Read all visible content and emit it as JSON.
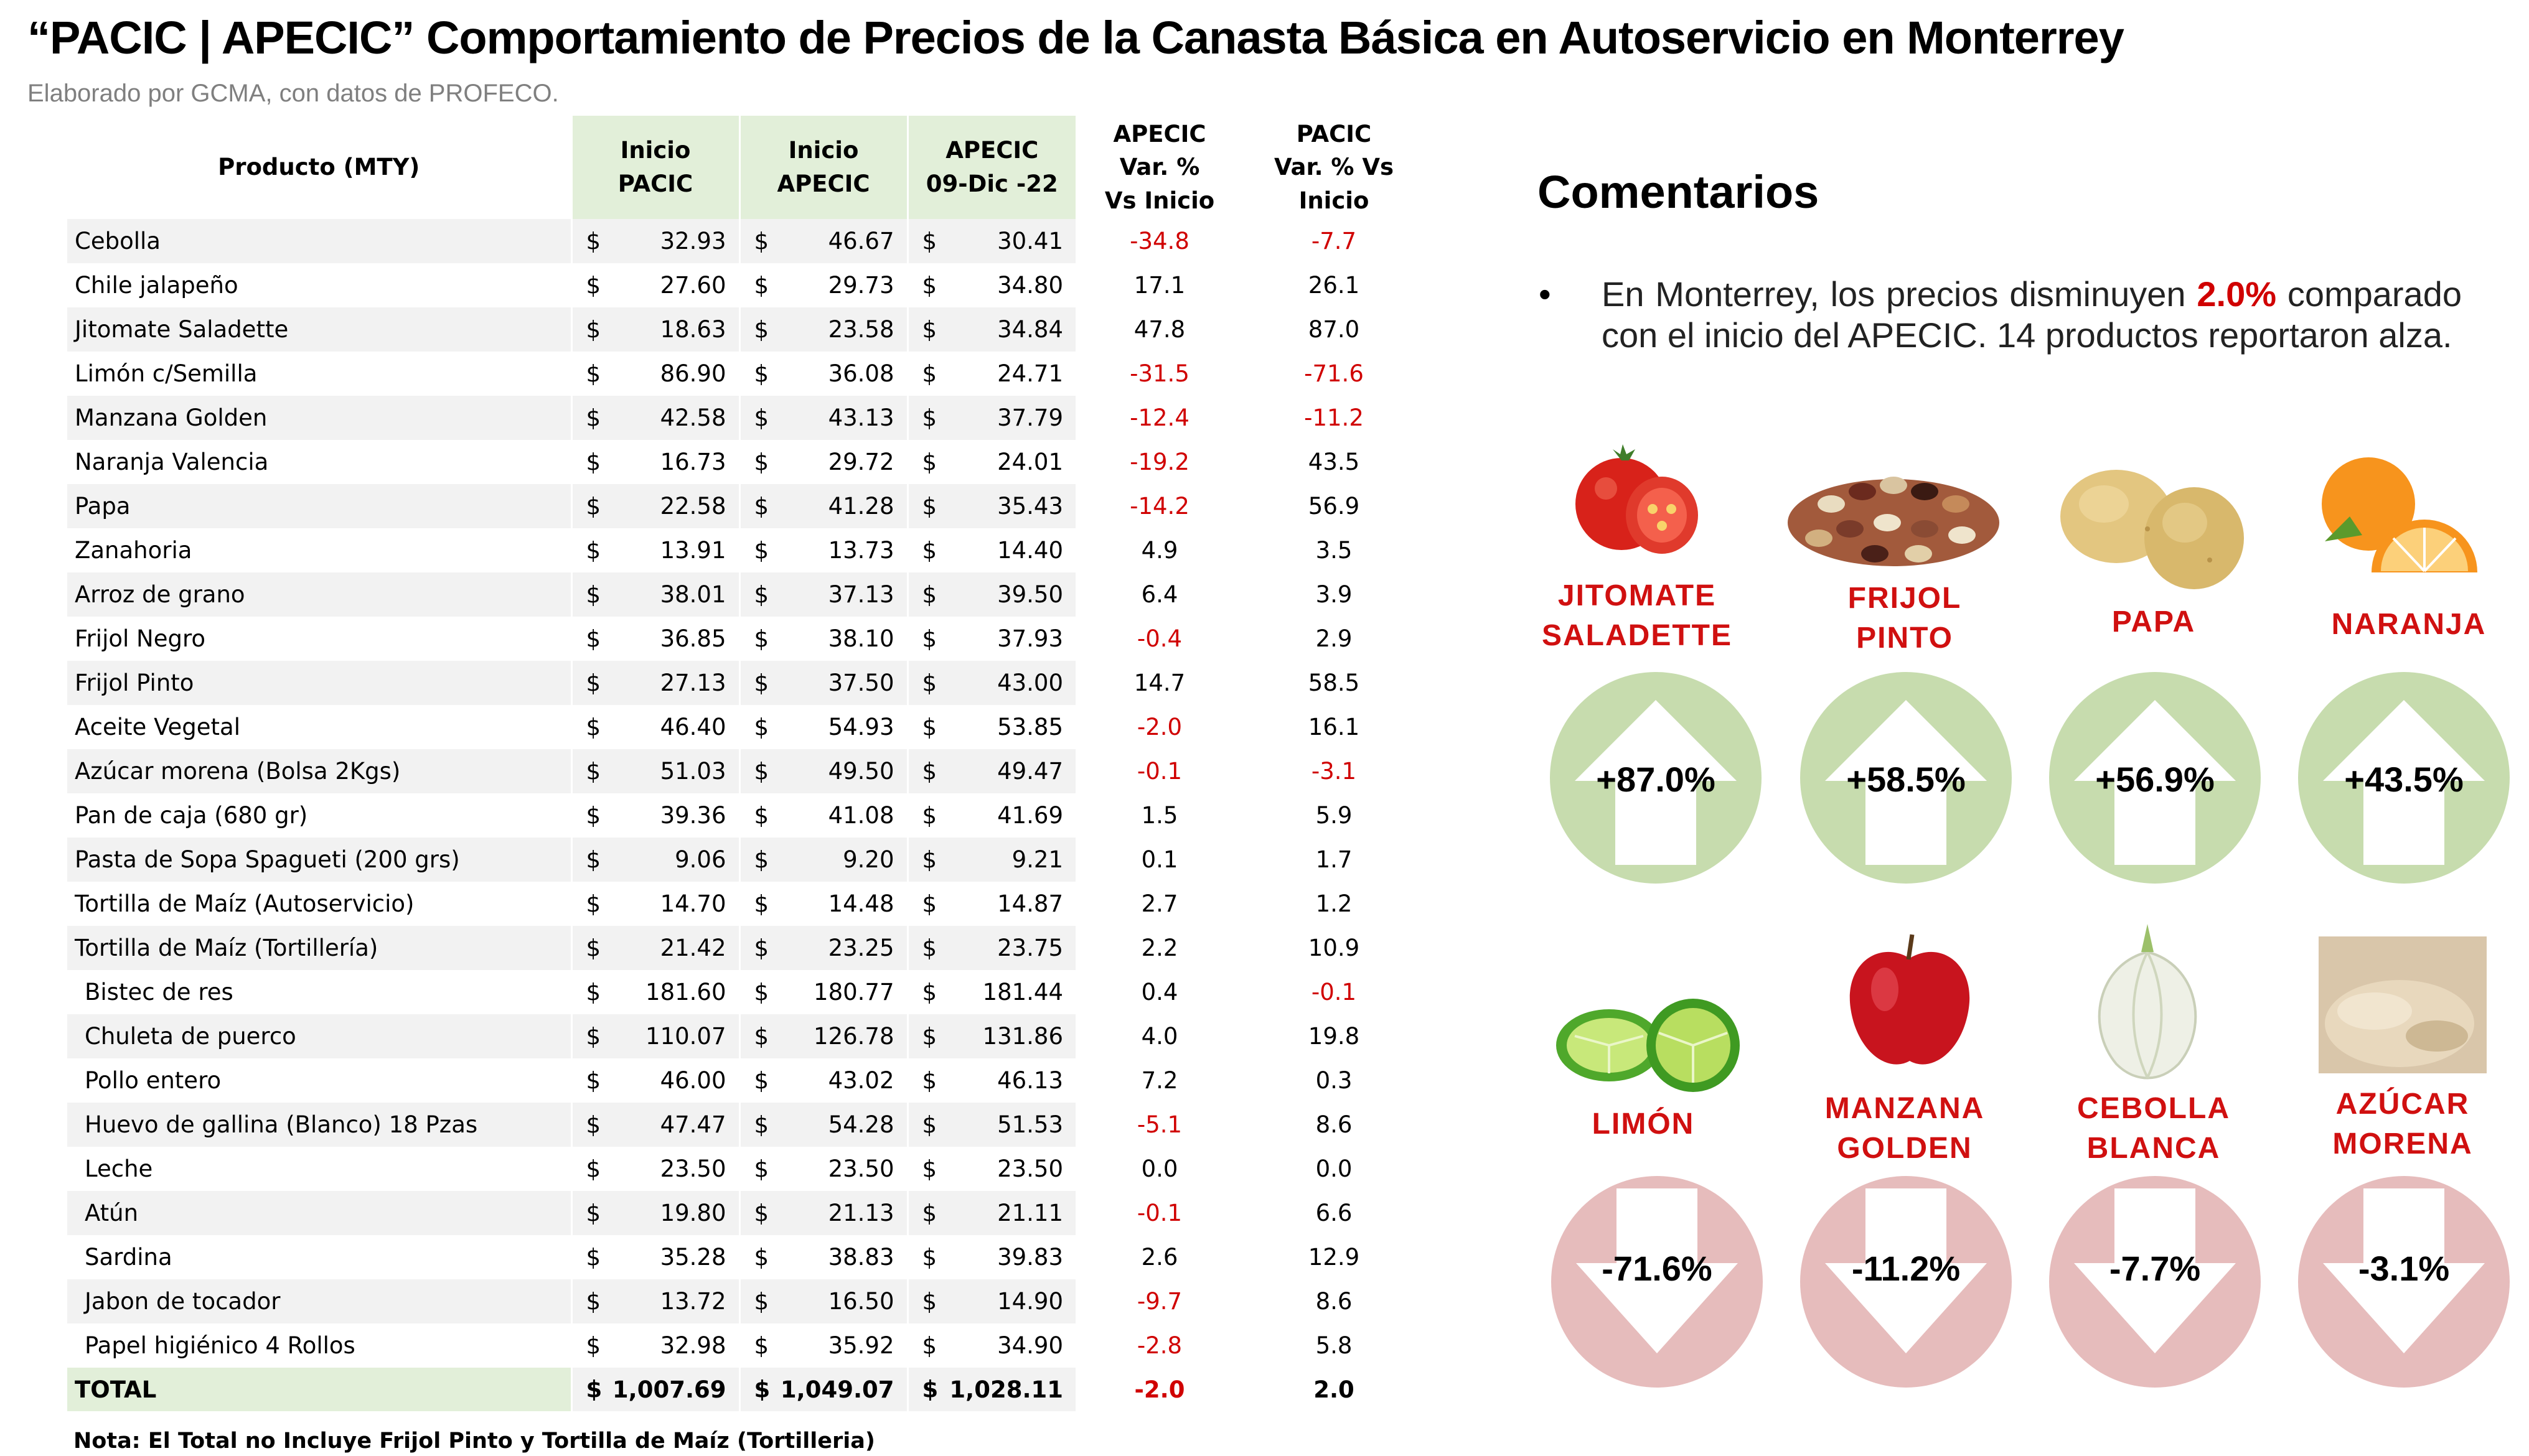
{
  "title": "“PACIC | APECIC” Comportamiento de Precios de la Canasta Básica en Autoservicio en Monterrey",
  "subtitle": "Elaborado por GCMA, con datos de PROFECO.",
  "table": {
    "headers": {
      "product": "Producto (MTY)",
      "pacic_l1": "Inicio",
      "pacic_l2": "PACIC",
      "apecic_l1": "Inicio",
      "apecic_l2": "APECIC",
      "date_l1": "APECIC",
      "date_l2": "09-Dic -22",
      "var_apecic_l1": "APECIC",
      "var_apecic_l2": "Var. %",
      "var_apecic_l3": "Vs  Inicio",
      "var_pacic_l1": "PACIC",
      "var_pacic_l2": "Var. % Vs",
      "var_pacic_l3": "Inicio"
    },
    "currency_symbol": "$",
    "rows": [
      {
        "product": "Cebolla",
        "indent": false,
        "pacic": "32.93",
        "apecic": "46.67",
        "current": "30.41",
        "var_apecic": "-34.8",
        "var_pacic": "-7.7"
      },
      {
        "product": "Chile jalapeño",
        "indent": false,
        "pacic": "27.60",
        "apecic": "29.73",
        "current": "34.80",
        "var_apecic": "17.1",
        "var_pacic": "26.1"
      },
      {
        "product": "Jitomate Saladette",
        "indent": false,
        "pacic": "18.63",
        "apecic": "23.58",
        "current": "34.84",
        "var_apecic": "47.8",
        "var_pacic": "87.0"
      },
      {
        "product": "Limón c/Semilla",
        "indent": false,
        "pacic": "86.90",
        "apecic": "36.08",
        "current": "24.71",
        "var_apecic": "-31.5",
        "var_pacic": "-71.6"
      },
      {
        "product": "Manzana Golden",
        "indent": false,
        "pacic": "42.58",
        "apecic": "43.13",
        "current": "37.79",
        "var_apecic": "-12.4",
        "var_pacic": "-11.2"
      },
      {
        "product": "Naranja Valencia",
        "indent": false,
        "pacic": "16.73",
        "apecic": "29.72",
        "current": "24.01",
        "var_apecic": "-19.2",
        "var_pacic": "43.5"
      },
      {
        "product": "Papa",
        "indent": false,
        "pacic": "22.58",
        "apecic": "41.28",
        "current": "35.43",
        "var_apecic": "-14.2",
        "var_pacic": "56.9"
      },
      {
        "product": "Zanahoria",
        "indent": false,
        "pacic": "13.91",
        "apecic": "13.73",
        "current": "14.40",
        "var_apecic": "4.9",
        "var_pacic": "3.5"
      },
      {
        "product": "Arroz de grano",
        "indent": false,
        "pacic": "38.01",
        "apecic": "37.13",
        "current": "39.50",
        "var_apecic": "6.4",
        "var_pacic": "3.9"
      },
      {
        "product": "Frijol Negro",
        "indent": false,
        "pacic": "36.85",
        "apecic": "38.10",
        "current": "37.93",
        "var_apecic": "-0.4",
        "var_pacic": "2.9"
      },
      {
        "product": "Frijol Pinto",
        "indent": false,
        "pacic": "27.13",
        "apecic": "37.50",
        "current": "43.00",
        "var_apecic": "14.7",
        "var_pacic": "58.5"
      },
      {
        "product": "Aceite Vegetal",
        "indent": false,
        "pacic": "46.40",
        "apecic": "54.93",
        "current": "53.85",
        "var_apecic": "-2.0",
        "var_pacic": "16.1"
      },
      {
        "product": "Azúcar morena (Bolsa 2Kgs)",
        "indent": false,
        "pacic": "51.03",
        "apecic": "49.50",
        "current": "49.47",
        "var_apecic": "-0.1",
        "var_pacic": "-3.1"
      },
      {
        "product": "Pan de caja (680 gr)",
        "indent": false,
        "pacic": "39.36",
        "apecic": "41.08",
        "current": "41.69",
        "var_apecic": "1.5",
        "var_pacic": "5.9"
      },
      {
        "product": "Pasta de Sopa Spagueti (200 grs)",
        "indent": false,
        "pacic": "9.06",
        "apecic": "9.20",
        "current": "9.21",
        "var_apecic": "0.1",
        "var_pacic": "1.7"
      },
      {
        "product": "Tortilla de Maíz (Autoservicio)",
        "indent": false,
        "pacic": "14.70",
        "apecic": "14.48",
        "current": "14.87",
        "var_apecic": "2.7",
        "var_pacic": "1.2"
      },
      {
        "product": "Tortilla de Maíz (Tortillería)",
        "indent": false,
        "pacic": "21.42",
        "apecic": "23.25",
        "current": "23.75",
        "var_apecic": "2.2",
        "var_pacic": "10.9"
      },
      {
        "product": "Bistec de res",
        "indent": true,
        "pacic": "181.60",
        "apecic": "180.77",
        "current": "181.44",
        "var_apecic": "0.4",
        "var_pacic": "-0.1"
      },
      {
        "product": "Chuleta de puerco",
        "indent": true,
        "pacic": "110.07",
        "apecic": "126.78",
        "current": "131.86",
        "var_apecic": "4.0",
        "var_pacic": "19.8"
      },
      {
        "product": "Pollo entero",
        "indent": true,
        "pacic": "46.00",
        "apecic": "43.02",
        "current": "46.13",
        "var_apecic": "7.2",
        "var_pacic": "0.3"
      },
      {
        "product": "Huevo de gallina (Blanco) 18 Pzas",
        "indent": true,
        "pacic": "47.47",
        "apecic": "54.28",
        "current": "51.53",
        "var_apecic": "-5.1",
        "var_pacic": "8.6"
      },
      {
        "product": "Leche",
        "indent": true,
        "pacic": "23.50",
        "apecic": "23.50",
        "current": "23.50",
        "var_apecic": "0.0",
        "var_pacic": "0.0"
      },
      {
        "product": "Atún",
        "indent": true,
        "pacic": "19.80",
        "apecic": "21.13",
        "current": "21.11",
        "var_apecic": "-0.1",
        "var_pacic": "6.6"
      },
      {
        "product": "Sardina",
        "indent": true,
        "pacic": "35.28",
        "apecic": "38.83",
        "current": "39.83",
        "var_apecic": "2.6",
        "var_pacic": "12.9"
      },
      {
        "product": "Jabon de tocador",
        "indent": true,
        "pacic": "13.72",
        "apecic": "16.50",
        "current": "14.90",
        "var_apecic": "-9.7",
        "var_pacic": "8.6"
      },
      {
        "product": "Papel higiénico 4 Rollos",
        "indent": true,
        "pacic": "32.98",
        "apecic": "35.92",
        "current": "34.90",
        "var_apecic": "-2.8",
        "var_pacic": "5.8"
      }
    ],
    "total": {
      "product": "TOTAL",
      "pacic": "1,007.69",
      "apecic": "1,049.07",
      "current": "1,028.11",
      "var_apecic": "-2.0",
      "var_pacic": "2.0"
    },
    "note": "Nota: El Total no Incluye Frijol Pinto y Tortilla de Maíz (Tortilleria)"
  },
  "comments": {
    "heading": "Comentarios",
    "bullet": "•",
    "text_before": "En Monterrey, los precios disminuyen ",
    "highlight": "2.0%",
    "text_after": " comparado con el inicio del APECIC. 14 productos reportaron alza."
  },
  "highlights": {
    "up": [
      {
        "name_l1": "JITOMATE",
        "name_l2": "SALADETTE",
        "value": "+87.0%",
        "icon": "tomato-icon"
      },
      {
        "name_l1": "FRIJOL",
        "name_l2": "PINTO",
        "value": "+58.5%",
        "icon": "beans-icon"
      },
      {
        "name_l1": "PAPA",
        "name_l2": "",
        "value": "+56.9%",
        "icon": "potato-icon"
      },
      {
        "name_l1": "NARANJA",
        "name_l2": "",
        "value": "+43.5%",
        "icon": "orange-icon"
      }
    ],
    "down": [
      {
        "name_l1": "LIMÓN",
        "name_l2": "",
        "value": "-71.6%",
        "icon": "lime-icon"
      },
      {
        "name_l1": "MANZANA",
        "name_l2": "GOLDEN",
        "value": "-11.2%",
        "icon": "apple-icon"
      },
      {
        "name_l1": "CEBOLLA",
        "name_l2": "BLANCA",
        "value": "-7.7%",
        "icon": "onion-icon"
      },
      {
        "name_l1": "AZÚCAR",
        "name_l2": "MORENA",
        "value": "-3.1%",
        "icon": "sugar-icon"
      }
    ],
    "colors": {
      "up_circle": "#c7dcae",
      "down_circle": "#e6bcbc",
      "label": "#d01010",
      "negative": "#d00000",
      "header_green": "#e2efd9"
    }
  }
}
